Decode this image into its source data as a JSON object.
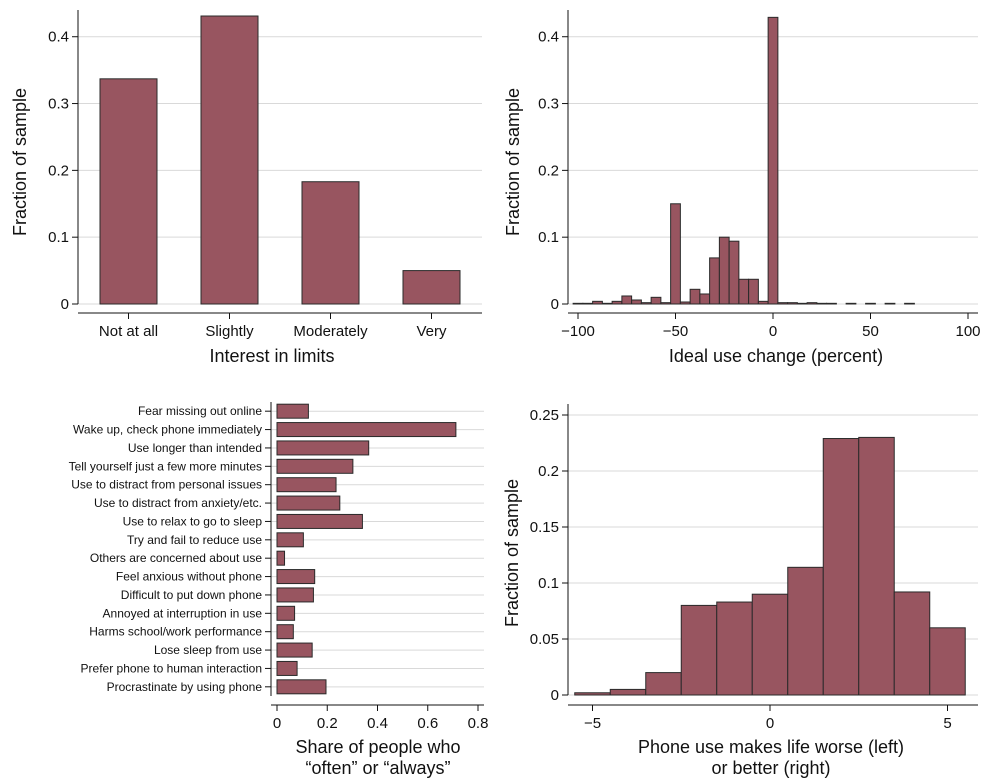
{
  "chart_data": [
    {
      "type": "bar",
      "categories": [
        "Not at all",
        "Slightly",
        "Moderately",
        "Very"
      ],
      "values": [
        0.337,
        0.431,
        0.183,
        0.05
      ],
      "xlabel": "Interest in limits",
      "ylabel": "Fraction of sample",
      "ylim": [
        0,
        0.44
      ],
      "yticks": [
        "0",
        "0.1",
        "0.2",
        "0.3",
        "0.4"
      ],
      "grid": true,
      "bar_color": "#985560"
    },
    {
      "type": "bar",
      "x": [
        -100,
        -95,
        -90,
        -85,
        -80,
        -75,
        -70,
        -65,
        -60,
        -55,
        -50,
        -45,
        -40,
        -35,
        -30,
        -25,
        -20,
        -15,
        -10,
        -5,
        0,
        5,
        10,
        15,
        20,
        25,
        30,
        40,
        50,
        60,
        70
      ],
      "values": [
        0.001,
        0.001,
        0.004,
        0.001,
        0.004,
        0.012,
        0.006,
        0.002,
        0.01,
        0.002,
        0.15,
        0.003,
        0.022,
        0.015,
        0.069,
        0.1,
        0.094,
        0.037,
        0.037,
        0.004,
        0.429,
        0.002,
        0.002,
        0.001,
        0.002,
        0.001,
        0.001,
        0.001,
        0.001,
        0.001,
        0.001
      ],
      "bin_width": 5,
      "xlabel": "Ideal use change (percent)",
      "ylabel": "Fraction of sample",
      "xlim": [
        -105,
        105
      ],
      "ylim": [
        0,
        0.44
      ],
      "xticks": [
        "−100",
        "−50",
        "0",
        "50",
        "100"
      ],
      "yticks": [
        "0",
        "0.1",
        "0.2",
        "0.3",
        "0.4"
      ],
      "grid": true,
      "bar_color": "#985560"
    },
    {
      "type": "bar",
      "orientation": "horizontal",
      "categories": [
        "Fear missing out online",
        "Wake up, check phone immediately",
        "Use longer than intended",
        "Tell yourself just a few more minutes",
        "Use to distract from personal issues",
        "Use to distract from anxiety/etc.",
        "Use to relax to go to sleep",
        "Try and fail to reduce use",
        "Others are concerned about use",
        "Feel anxious without phone",
        "Difficult to put down phone",
        "Annoyed at interruption in use",
        "Harms school/work performance",
        "Lose sleep from use",
        "Prefer phone to human interaction",
        "Procrastinate by using phone"
      ],
      "values": [
        0.125,
        0.712,
        0.365,
        0.302,
        0.235,
        0.25,
        0.34,
        0.105,
        0.03,
        0.15,
        0.145,
        0.07,
        0.065,
        0.14,
        0.08,
        0.195
      ],
      "xlabel_line1": "Share of people who",
      "xlabel_line2": "“often” or “always”",
      "xlim": [
        0,
        0.8
      ],
      "xticks": [
        "0",
        "0.2",
        "0.4",
        "0.6",
        "0.8"
      ],
      "grid": true,
      "bar_color": "#985560"
    },
    {
      "type": "bar",
      "x": [
        -5,
        -4,
        -3,
        -2,
        -1,
        0,
        1,
        2,
        3,
        4,
        5
      ],
      "values": [
        0.002,
        0.005,
        0.02,
        0.08,
        0.083,
        0.09,
        0.114,
        0.229,
        0.23,
        0.092,
        0.06
      ],
      "bin_width": 1,
      "xlabel_line1": "Phone use makes life worse (left)",
      "xlabel_line2": "or better (right)",
      "ylabel": "Fraction of sample",
      "xlim": [
        -5.75,
        5.75
      ],
      "ylim": [
        0,
        0.25
      ],
      "xticks": [
        "−5",
        "0",
        "5"
      ],
      "yticks": [
        "0",
        "0.05",
        "0.1",
        "0.15",
        "0.2",
        "0.25"
      ],
      "grid": true,
      "bar_color": "#985560"
    }
  ]
}
